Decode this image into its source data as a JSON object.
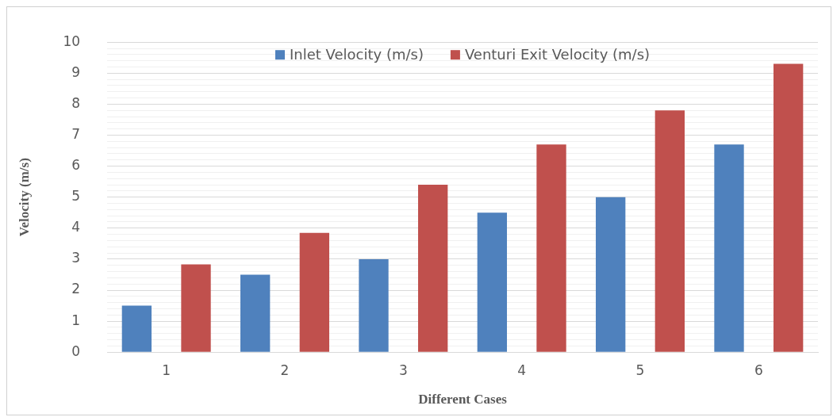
{
  "chart_data": {
    "type": "bar",
    "xlabel": "Different Cases",
    "ylabel": "Velocity (m/s)",
    "categories": [
      "1",
      "2",
      "3",
      "4",
      "5",
      "6"
    ],
    "series": [
      {
        "name": "Inlet Velocity (m/s)",
        "color": "#4f81bd",
        "values": [
          1.5,
          2.5,
          3.0,
          4.5,
          5.0,
          6.7
        ]
      },
      {
        "name": "Venturi Exit Velocity (m/s)",
        "color": "#c0504d",
        "values": [
          2.83,
          3.85,
          5.4,
          6.7,
          7.8,
          9.3
        ]
      }
    ],
    "ylim": [
      0,
      10
    ],
    "yticks": [
      0,
      {
        "value": 0.2,
        "label": null
      },
      {
        "value": 0.4,
        "label": null
      },
      {
        "value": 0.6,
        "label": null
      },
      {
        "value": 0.8,
        "label": null
      },
      1,
      {
        "value": 1.2,
        "label": null
      },
      {
        "value": 1.4,
        "label": null
      },
      {
        "value": 1.6,
        "label": null
      },
      {
        "value": 1.8,
        "label": null
      },
      2,
      {
        "value": 2.2,
        "label": null
      },
      {
        "value": 2.4,
        "label": null
      },
      {
        "value": 2.6,
        "label": null
      },
      {
        "value": 2.8,
        "label": null
      },
      3,
      {
        "value": 3.2,
        "label": null
      },
      {
        "value": 3.4,
        "label": null
      },
      {
        "value": 3.6,
        "label": null
      },
      {
        "value": 3.8,
        "label": null
      },
      4,
      {
        "value": 4.2,
        "label": null
      },
      {
        "value": 4.4,
        "label": null
      },
      {
        "value": 4.6,
        "label": null
      },
      {
        "value": 4.8,
        "label": null
      },
      5,
      {
        "value": 5.2,
        "label": null
      },
      {
        "value": 5.4,
        "label": null
      },
      {
        "value": 5.6,
        "label": null
      },
      {
        "value": 5.8,
        "label": null
      },
      6,
      {
        "value": 6.2,
        "label": null
      },
      {
        "value": 6.4,
        "label": null
      },
      {
        "value": 6.6,
        "label": null
      },
      {
        "value": 6.8,
        "label": null
      },
      7,
      {
        "value": 7.2,
        "label": null
      },
      {
        "value": 7.4,
        "label": null
      },
      {
        "value": 7.6,
        "label": null
      },
      {
        "value": 7.8,
        "label": null
      },
      8,
      {
        "value": 8.2,
        "label": null
      },
      {
        "value": 8.4,
        "label": null
      },
      {
        "value": 8.6,
        "label": null
      },
      {
        "value": 8.8,
        "label": null
      },
      9,
      {
        "value": 9.2,
        "label": null
      },
      {
        "value": 9.4,
        "label": null
      },
      {
        "value": 9.6,
        "label": null
      },
      {
        "value": 9.8,
        "label": null
      },
      10
    ],
    "grid": "y",
    "legend": "top"
  }
}
